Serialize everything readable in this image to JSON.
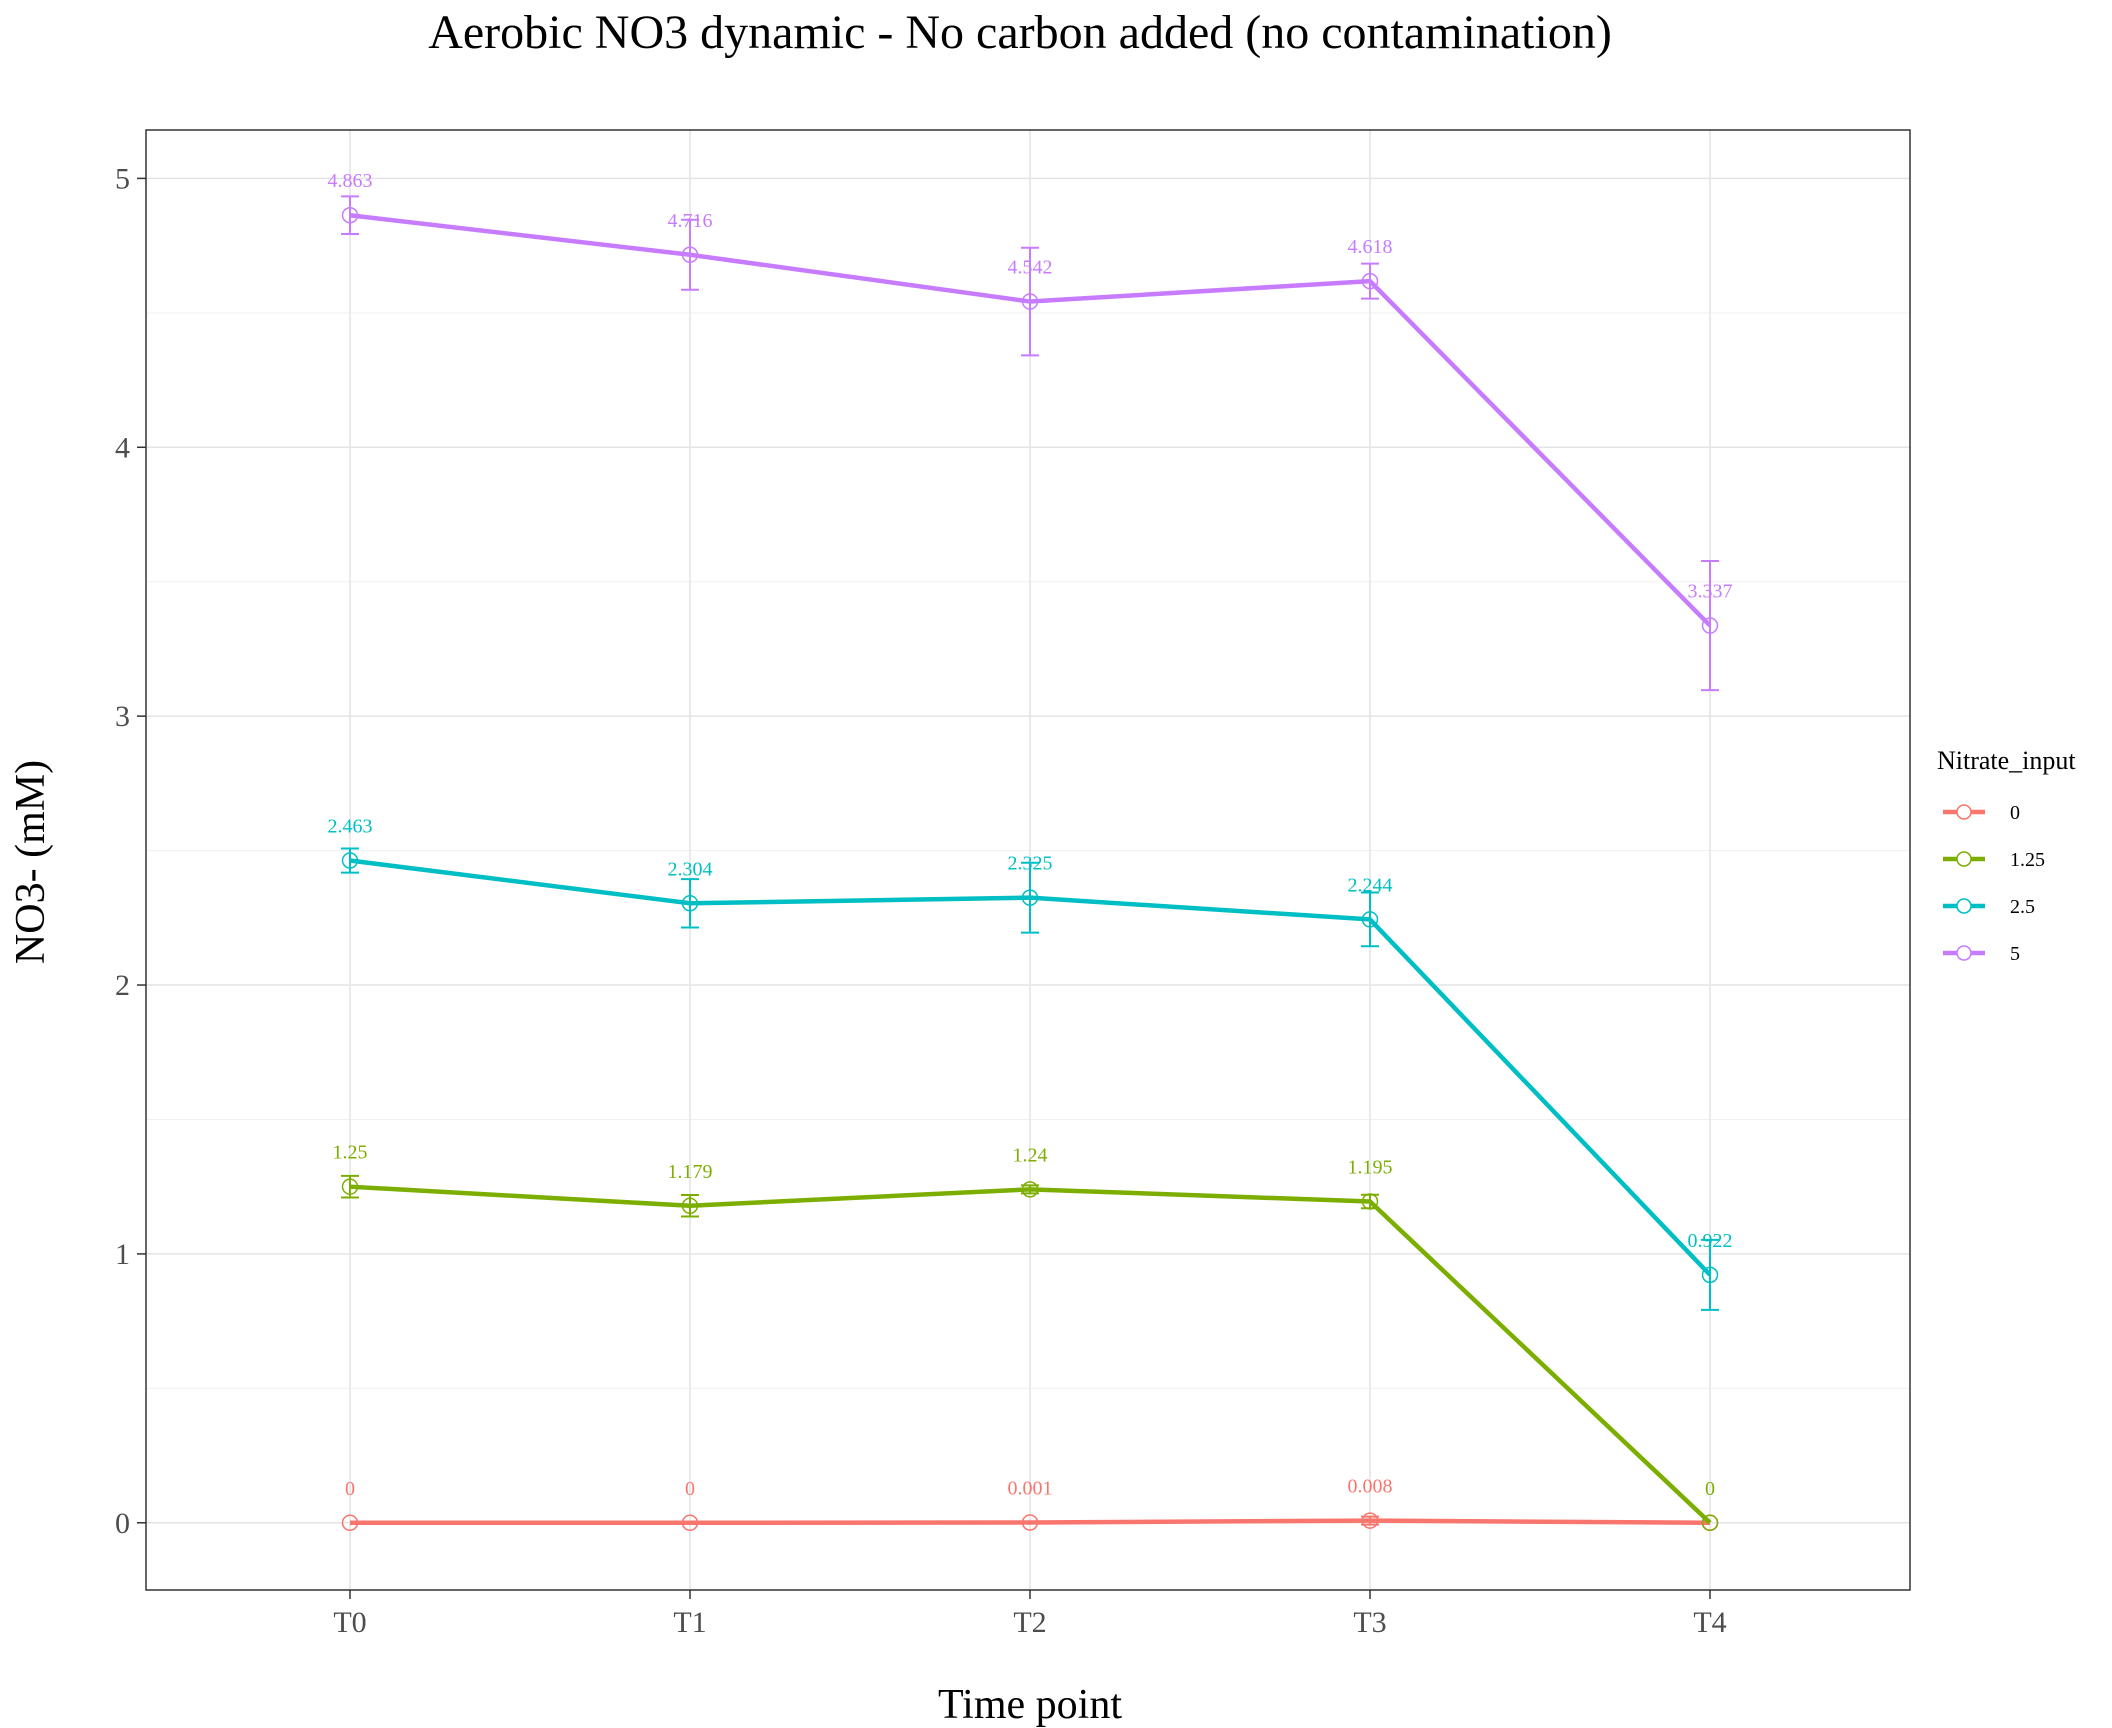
{
  "chart_data": {
    "type": "line",
    "title": "Aerobic NO3 dynamic - No carbon added (no contamination)",
    "xlabel": "Time point",
    "ylabel": "NO3- (mM)",
    "categories": [
      "T0",
      "T1",
      "T2",
      "T3",
      "T4"
    ],
    "ylim": [
      -0.25,
      5.18
    ],
    "yticks": [
      0,
      1,
      2,
      3,
      4,
      5
    ],
    "grid": true,
    "legend_title": "Nitrate_input",
    "legend_position": "right",
    "series": [
      {
        "name": "0",
        "color": "#F8766D",
        "values": [
          0,
          0,
          0.001,
          0.008,
          0
        ],
        "labels": [
          "0",
          "0",
          "0.001",
          "0.008",
          null
        ],
        "error": [
          0,
          0,
          0,
          0.015,
          0
        ]
      },
      {
        "name": "1.25",
        "color": "#7CAE00",
        "values": [
          1.25,
          1.179,
          1.24,
          1.195,
          0
        ],
        "labels": [
          "1.25",
          "1.179",
          "1.24",
          "1.195",
          "0"
        ],
        "error": [
          0.04,
          0.04,
          0.015,
          0.025,
          0
        ]
      },
      {
        "name": "2.5",
        "color": "#00BFC4",
        "values": [
          2.463,
          2.304,
          2.325,
          2.244,
          0.922
        ],
        "labels": [
          "2.463",
          "2.304",
          "2.325",
          "2.244",
          "0.922"
        ],
        "error": [
          0.045,
          0.09,
          0.13,
          0.1,
          0.13
        ]
      },
      {
        "name": "5",
        "color": "#C77CFF",
        "values": [
          4.863,
          4.716,
          4.542,
          4.618,
          3.337
        ],
        "labels": [
          "4.863",
          "4.716",
          "4.542",
          "4.618",
          "3.337"
        ],
        "error": [
          0.07,
          0.13,
          0.2,
          0.065,
          0.24
        ]
      }
    ]
  }
}
